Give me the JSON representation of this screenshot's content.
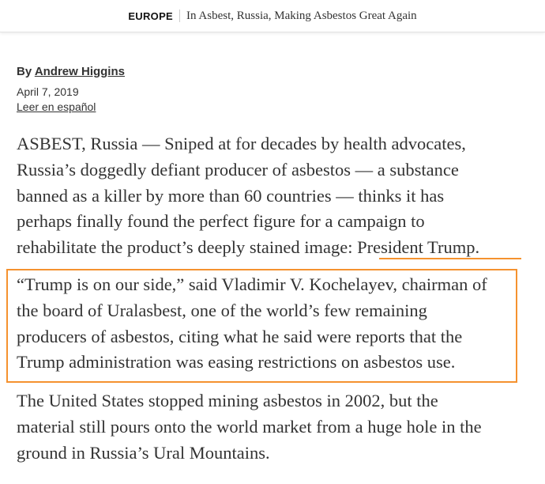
{
  "header": {
    "section": "EUROPE",
    "headline": "In Asbest, Russia, Making Asbestos Great Again"
  },
  "byline": {
    "prefix": "By",
    "author": "Andrew Higgins"
  },
  "date": "April 7, 2019",
  "translate_link": "Leer en español",
  "highlight_color": "#f5922f",
  "paragraphs": [
    {
      "lines": [
        "ASBEST, Russia — Sniped at for decades by health advocates,",
        "Russia’s doggedly defiant producer of asbestos — a substance",
        "banned as a killer by more than 60 countries — thinks it has",
        "perhaps finally found the perfect figure for a campaign to",
        "rehabilitate the product’s deeply stained image: President Trump."
      ]
    },
    {
      "lines": [
        "“Trump is on our side,” said Vladimir V. Kochelayev, chairman of",
        "the board of Uralasbest, one of the world’s few remaining",
        "producers of asbestos, citing what he said were reports that the",
        "Trump administration was easing restrictions on asbestos use."
      ]
    },
    {
      "lines": [
        "The United States stopped mining asbestos in 2002, but the",
        "material still pours onto the world market from a huge hole in the",
        "ground in Russia’s Ural Mountains."
      ]
    }
  ]
}
